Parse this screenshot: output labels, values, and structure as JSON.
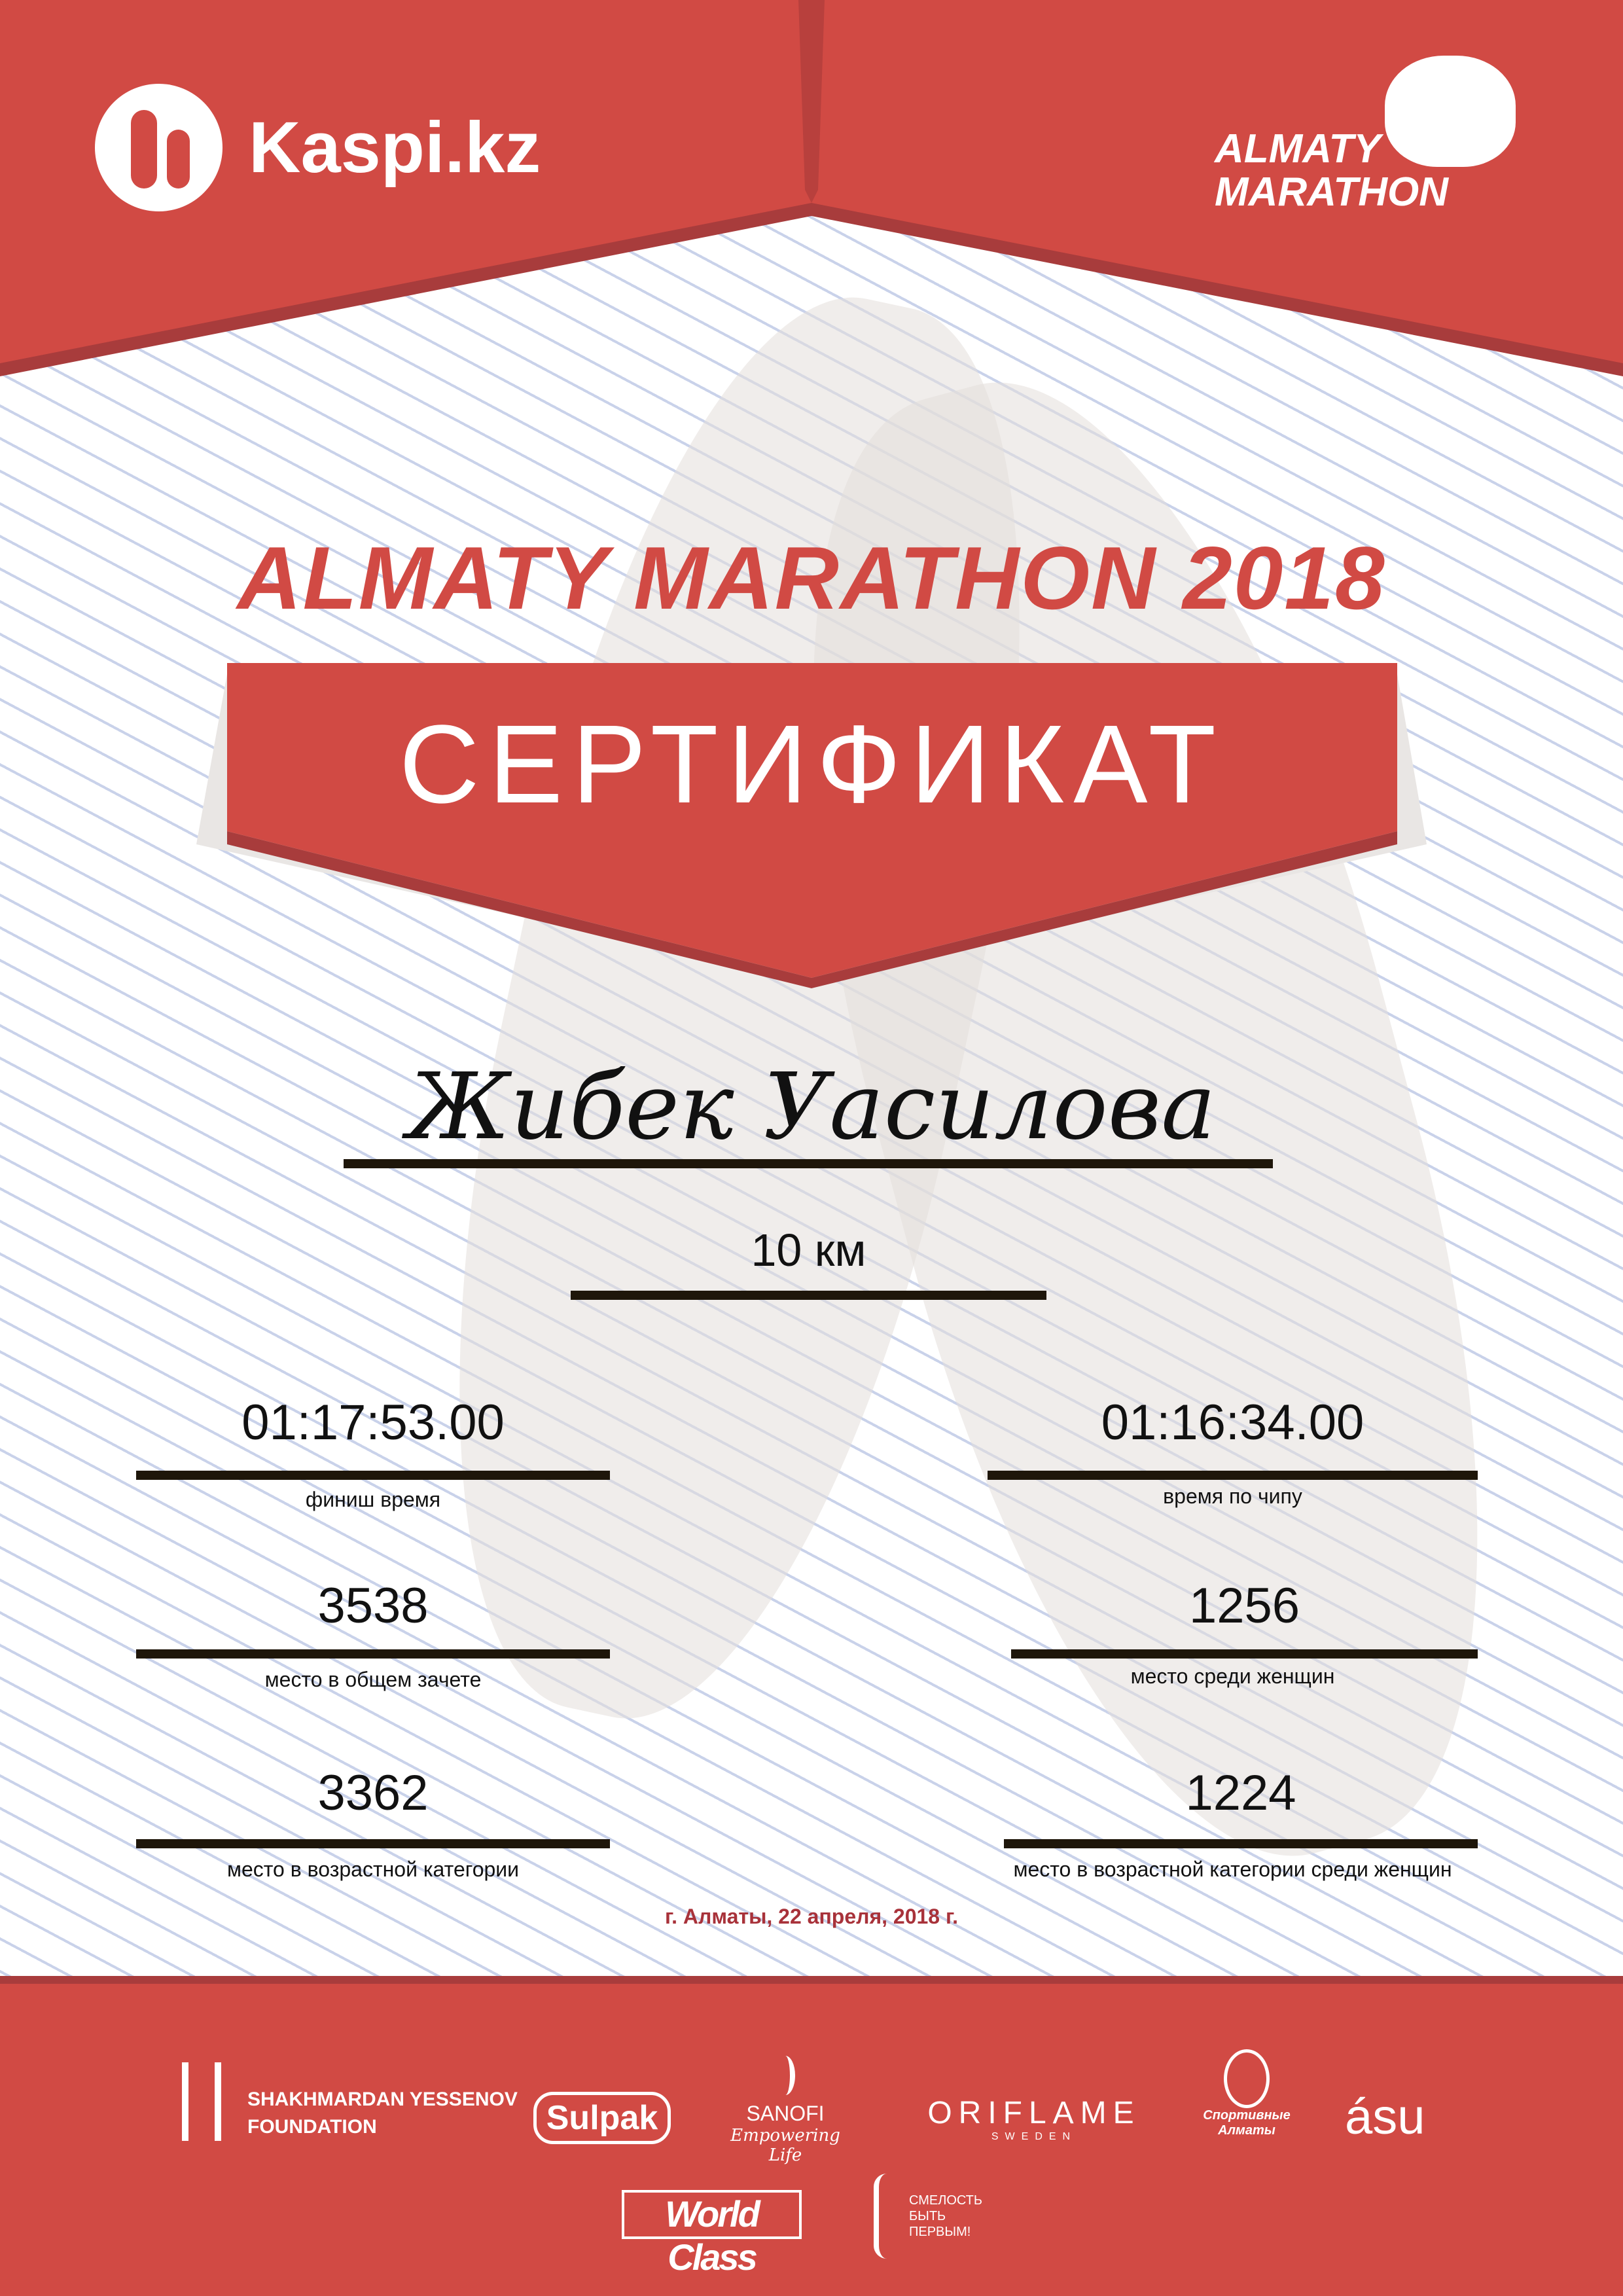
{
  "header": {
    "sponsor_logo": "Kaspi.kz",
    "event_logo": "ALMATY MARATHON"
  },
  "title": "ALMATY MARATHON 2018",
  "certificate_label": "СЕРТИФИКАТ",
  "participant_name": "Жибек Уасилова",
  "distance": "10 км",
  "results": {
    "finish_time": {
      "value": "01:17:53.00",
      "label": "финиш время"
    },
    "chip_time": {
      "value": "01:16:34.00",
      "label": "время по чипу"
    },
    "overall_place": {
      "value": "3538",
      "label": "место в общем зачете"
    },
    "women_place": {
      "value": "1256",
      "label": "место среди женщин"
    },
    "age_place": {
      "value": "3362",
      "label": "место в возрастной категории"
    },
    "women_age_place": {
      "value": "1224",
      "label": "место в возрастной категории среди женщин"
    }
  },
  "date": "г. Алматы, 22 апреля, 2018 г.",
  "sponsors": {
    "yessenov": [
      "SHAKHMARDAN YESSENOV",
      "FOUNDATION"
    ],
    "sulpak": "Sulpak",
    "sanofi": [
      "SANOFI",
      "Empowering Life"
    ],
    "oriflame": [
      "ORIFLAME",
      "SWEDEN"
    ],
    "sport_almaty": [
      "Спортивные",
      "Алматы"
    ],
    "asu": "ásu",
    "worldclass": "World Class",
    "fund": [
      "СМЕЛОСТЬ",
      "БЫТЬ",
      "ПЕРВЫМ!"
    ]
  },
  "colors": {
    "brand_red": "#d14a44",
    "dark_red": "#a83c3c",
    "line": "#1e160a"
  }
}
